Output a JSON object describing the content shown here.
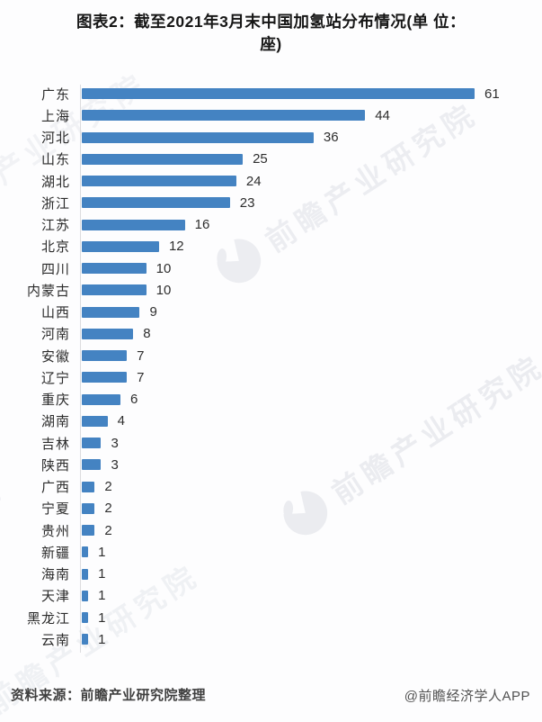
{
  "title": {
    "line1": "图表2：截至2021年3月末中国加氢站分布情况(单 位：",
    "line2": "座)"
  },
  "chart_data": {
    "type": "bar",
    "orientation": "horizontal",
    "title": "截至2021年3月末中国加氢站分布情况",
    "unit": "座",
    "categories": [
      "广东",
      "上海",
      "河北",
      "山东",
      "湖北",
      "浙江",
      "江苏",
      "北京",
      "四川",
      "内蒙古",
      "山西",
      "河南",
      "安徽",
      "辽宁",
      "重庆",
      "湖南",
      "吉林",
      "陕西",
      "广西",
      "宁夏",
      "贵州",
      "新疆",
      "海南",
      "天津",
      "黑龙江",
      "云南"
    ],
    "values": [
      61,
      44,
      36,
      25,
      24,
      23,
      16,
      12,
      10,
      10,
      9,
      8,
      7,
      7,
      6,
      4,
      3,
      3,
      2,
      2,
      2,
      1,
      1,
      1,
      1,
      1
    ],
    "xlim": [
      0,
      61
    ],
    "bar_color": "#4483c2",
    "grid": false,
    "legend": "none",
    "value_labels": "shown at bar end"
  },
  "watermark": {
    "text": "前瞻产业研究院",
    "logo_icon": "qianzhan-logo"
  },
  "footer": {
    "source": "资料来源：前瞻产业研究院整理",
    "credit": "@前瞻经济学人APP"
  }
}
